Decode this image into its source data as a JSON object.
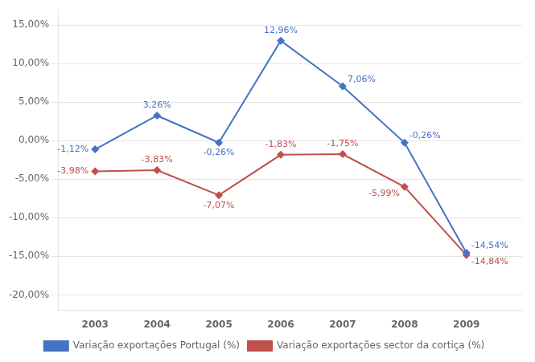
{
  "chart_data": {
    "type": "line",
    "x": [
      2003,
      2004,
      2005,
      2006,
      2007,
      2008,
      2009
    ],
    "series": [
      {
        "name": "Variação exportações Portugal (%)",
        "color": "#4472C4",
        "marker": "diamond",
        "values": [
          -1.12,
          3.26,
          -0.26,
          12.96,
          7.06,
          -0.26,
          -14.54
        ],
        "value_labels": [
          "-1,12%",
          "3,26%",
          "-0,26%",
          "12,96%",
          "7,06%",
          "-0,26%",
          "-14,54%"
        ]
      },
      {
        "name": "Variação exportações sector da cortiça (%)",
        "color": "#C0504D",
        "marker": "diamond",
        "values": [
          -3.98,
          -3.83,
          -7.07,
          -1.83,
          -1.75,
          -5.99,
          -14.84
        ],
        "value_labels": [
          "-3,98%",
          "-3,83%",
          "-7,07%",
          "-1,83%",
          "-1,75%",
          "-5,99%",
          "-14,84%"
        ]
      }
    ],
    "xlim": [
      2002.4,
      2009.9
    ],
    "xticks": [
      2003,
      2004,
      2005,
      2006,
      2007,
      2008,
      2009
    ],
    "ylim": [
      -22,
      17
    ],
    "yticks": [
      {
        "value": -20,
        "label": "-20,00%"
      },
      {
        "value": -15,
        "label": "-15,00%"
      },
      {
        "value": -10,
        "label": "-10,00%"
      },
      {
        "value": -5,
        "label": "-5,00%"
      },
      {
        "value": 0,
        "label": "0,00%"
      },
      {
        "value": 5,
        "label": "5,00%"
      },
      {
        "value": 10,
        "label": "10,00%"
      },
      {
        "value": 15,
        "label": "15,00%"
      }
    ],
    "grid": true,
    "legend": "bottom",
    "data_labels": true
  }
}
